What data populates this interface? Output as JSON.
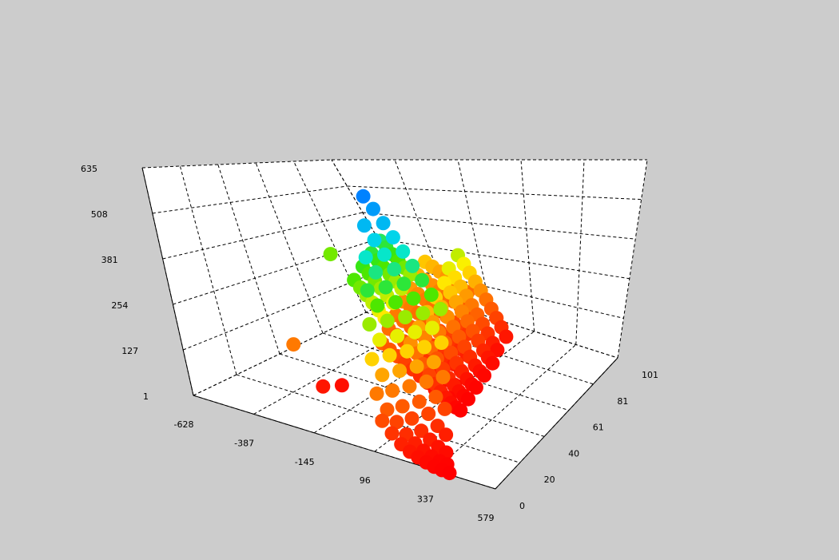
{
  "colors": {
    "background": "#cccccc",
    "grid": "#000000",
    "panel": "#ffffff"
  },
  "chart_data": {
    "type": "scatter",
    "title": "",
    "xlabel": "",
    "ylabel": "",
    "zlabel": "",
    "grid": true,
    "legend": "none",
    "x_axis": {
      "range": [
        -628,
        579
      ],
      "ticks": [
        "-628",
        "-387",
        "-145",
        "96",
        "337",
        "579"
      ]
    },
    "y_axis": {
      "range": [
        0,
        101
      ],
      "ticks": [
        "0",
        "20",
        "40",
        "61",
        "81",
        "101"
      ]
    },
    "z_axis": {
      "range": [
        1,
        635
      ],
      "ticks": [
        "1",
        "127",
        "254",
        "381",
        "508",
        "635"
      ]
    },
    "colormap": "z-value: red (low) → orange → yellow → green → cyan → blue (high)",
    "series": [
      {
        "x": [
          -330,
          -300,
          -270,
          -240,
          -210,
          -180,
          -150,
          -300,
          -270,
          -240,
          -210,
          -180,
          -150,
          -120,
          -90,
          -270,
          -240,
          -210,
          -180,
          -150,
          -120,
          -90,
          -60,
          -30,
          -240,
          -210,
          -180,
          -150,
          -120,
          -90,
          -60,
          -30,
          0,
          30,
          -210,
          -180,
          -150,
          -120,
          -90,
          -60,
          -30,
          0,
          30,
          60,
          -180,
          -150,
          -120,
          -90,
          -60,
          -30,
          0,
          30,
          60,
          90,
          -150,
          -120,
          -90,
          -60,
          -30,
          0,
          30,
          60,
          90,
          120,
          -60,
          -30,
          0,
          30,
          60,
          90,
          120,
          150,
          180,
          -30,
          0,
          30,
          60,
          90,
          120,
          150,
          180,
          210,
          0,
          30,
          60,
          90,
          120,
          150,
          180,
          210,
          240,
          30,
          60,
          90,
          120,
          150,
          180,
          210,
          240,
          270,
          60,
          90,
          120,
          150,
          180,
          210,
          240,
          270,
          300,
          90,
          120,
          150,
          180,
          210,
          240,
          270,
          300,
          330,
          120,
          150,
          180,
          210,
          240,
          270,
          300,
          330,
          360,
          150,
          180,
          210,
          240,
          270,
          300,
          330,
          360,
          390,
          -120,
          -100,
          -80,
          -60,
          -40,
          -20,
          0,
          20,
          40,
          60,
          -100,
          -80,
          -60,
          -40,
          -20,
          0,
          20,
          40,
          60,
          80,
          -60,
          -40,
          -20,
          0,
          20,
          40,
          60,
          80,
          100,
          120,
          -40,
          -20,
          0,
          20,
          40,
          60,
          80,
          100,
          120,
          140,
          -20,
          0,
          20,
          40,
          60,
          80,
          100,
          120,
          140,
          160,
          0,
          20,
          40,
          60,
          80,
          100,
          120,
          140,
          160,
          180,
          20,
          40,
          60,
          80,
          100,
          120,
          140,
          160,
          180,
          200,
          -200,
          -180,
          -160,
          -140,
          -120,
          -100,
          -180,
          -160,
          -140,
          -120,
          -100,
          -80,
          -160,
          -140,
          -120,
          -100,
          -80,
          -60,
          -140,
          -120,
          -100,
          -80,
          -60,
          -40,
          -420,
          -330,
          -280,
          -250
        ],
        "y": [
          92,
          92,
          92,
          92,
          92,
          92,
          92,
          84,
          84,
          84,
          84,
          84,
          84,
          84,
          84,
          76,
          76,
          76,
          76,
          76,
          76,
          76,
          76,
          76,
          68,
          68,
          68,
          68,
          68,
          68,
          68,
          68,
          68,
          68,
          60,
          60,
          60,
          60,
          60,
          60,
          60,
          60,
          60,
          60,
          52,
          52,
          52,
          52,
          52,
          52,
          52,
          52,
          52,
          52,
          44,
          44,
          44,
          44,
          44,
          44,
          44,
          44,
          44,
          44,
          40,
          40,
          40,
          40,
          40,
          40,
          40,
          40,
          40,
          34,
          34,
          34,
          34,
          34,
          34,
          34,
          34,
          34,
          28,
          28,
          28,
          28,
          28,
          28,
          28,
          28,
          28,
          22,
          22,
          22,
          22,
          22,
          22,
          22,
          22,
          22,
          16,
          16,
          16,
          16,
          16,
          16,
          16,
          16,
          16,
          10,
          10,
          10,
          10,
          10,
          10,
          10,
          10,
          10,
          5,
          5,
          5,
          5,
          5,
          5,
          5,
          5,
          5,
          1,
          1,
          1,
          1,
          1,
          1,
          1,
          1,
          1,
          88,
          88,
          88,
          88,
          88,
          88,
          88,
          88,
          88,
          88,
          80,
          80,
          80,
          80,
          80,
          80,
          80,
          80,
          80,
          80,
          72,
          72,
          72,
          72,
          72,
          72,
          72,
          72,
          72,
          72,
          64,
          64,
          64,
          64,
          64,
          64,
          64,
          64,
          64,
          64,
          56,
          56,
          56,
          56,
          56,
          56,
          56,
          56,
          56,
          56,
          48,
          48,
          48,
          48,
          48,
          48,
          48,
          48,
          48,
          48,
          40,
          40,
          40,
          40,
          40,
          40,
          40,
          40,
          40,
          40,
          60,
          60,
          60,
          60,
          60,
          60,
          52,
          52,
          52,
          52,
          52,
          52,
          44,
          44,
          44,
          44,
          44,
          44,
          36,
          36,
          36,
          36,
          36,
          36,
          58,
          20,
          24,
          30
        ],
        "z": [
          230,
          215,
          200,
          185,
          170,
          155,
          140,
          210,
          195,
          180,
          165,
          150,
          135,
          120,
          105,
          190,
          175,
          160,
          145,
          130,
          115,
          100,
          85,
          70,
          175,
          160,
          145,
          130,
          115,
          100,
          85,
          70,
          55,
          40,
          160,
          145,
          130,
          115,
          100,
          85,
          70,
          55,
          40,
          25,
          145,
          130,
          115,
          100,
          85,
          70,
          55,
          40,
          25,
          15,
          130,
          115,
          100,
          85,
          70,
          55,
          40,
          25,
          15,
          10,
          635,
          600,
          560,
          520,
          480,
          440,
          400,
          360,
          320,
          560,
          520,
          480,
          440,
          400,
          360,
          320,
          280,
          240,
          480,
          440,
          400,
          360,
          320,
          280,
          240,
          200,
          160,
          400,
          360,
          320,
          280,
          240,
          200,
          160,
          120,
          90,
          320,
          280,
          240,
          200,
          160,
          120,
          90,
          60,
          40,
          240,
          200,
          160,
          120,
          90,
          60,
          40,
          25,
          15,
          160,
          120,
          90,
          60,
          40,
          25,
          15,
          8,
          5,
          100,
          70,
          45,
          30,
          20,
          12,
          6,
          3,
          1,
          300,
          270,
          240,
          210,
          180,
          150,
          120,
          90,
          60,
          30,
          280,
          250,
          220,
          190,
          160,
          130,
          100,
          70,
          40,
          20,
          260,
          230,
          200,
          170,
          140,
          110,
          80,
          50,
          30,
          15,
          240,
          210,
          180,
          150,
          120,
          90,
          60,
          35,
          20,
          10,
          220,
          190,
          160,
          130,
          100,
          70,
          45,
          25,
          12,
          6,
          200,
          170,
          140,
          110,
          80,
          55,
          35,
          20,
          10,
          4,
          180,
          150,
          120,
          90,
          65,
          45,
          30,
          18,
          8,
          3,
          420,
          400,
          380,
          360,
          340,
          320,
          400,
          380,
          360,
          340,
          320,
          300,
          380,
          360,
          340,
          320,
          300,
          280,
          360,
          340,
          320,
          300,
          280,
          260,
          340,
          160,
          30,
          20
        ]
      }
    ]
  }
}
